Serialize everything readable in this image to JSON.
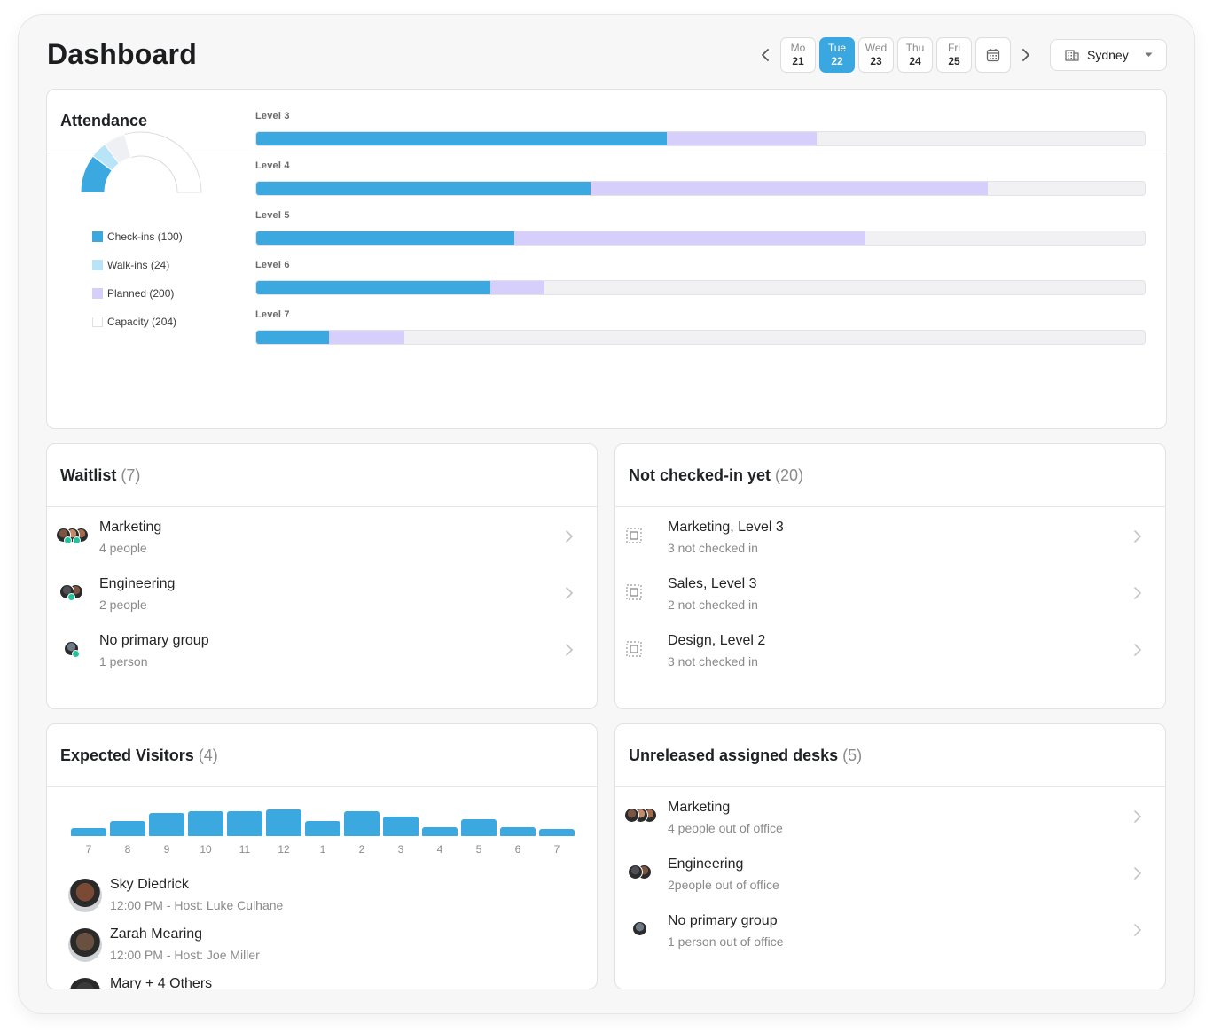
{
  "header": {
    "title": "Dashboard",
    "days": [
      {
        "name": "Mo",
        "date": "21",
        "active": false
      },
      {
        "name": "Tue",
        "date": "22",
        "active": true
      },
      {
        "name": "Wed",
        "date": "23",
        "active": false
      },
      {
        "name": "Thu",
        "date": "24",
        "active": false
      },
      {
        "name": "Fri",
        "date": "25",
        "active": false
      }
    ],
    "location": "Sydney"
  },
  "colors": {
    "checkins": "#3ba9e0",
    "walkins": "#b9e4f8",
    "planned": "#d7cffb",
    "capacity": "#ffffff",
    "accent": "#3aa7e0"
  },
  "attendance": {
    "title": "Attendance",
    "gauge": {
      "checkins": 100,
      "walkins": 24,
      "planned": 200,
      "capacity": 204
    },
    "legend": [
      {
        "label": "Check-ins (100)",
        "color": "#3ba9e0"
      },
      {
        "label": "Walk-ins (24)",
        "color": "#b9e4f8"
      },
      {
        "label": "Planned (200)",
        "color": "#d7cffb"
      },
      {
        "label": "Capacity (204)",
        "color": "#ffffff"
      }
    ],
    "levels": [
      {
        "label": "Level 3",
        "checkin_pct": 46.2,
        "planned_pct": 63.1
      },
      {
        "label": "Level 4",
        "checkin_pct": 37.6,
        "planned_pct": 82.3
      },
      {
        "label": "Level 5",
        "checkin_pct": 29.0,
        "planned_pct": 68.6
      },
      {
        "label": "Level 6",
        "checkin_pct": 26.3,
        "planned_pct": 32.4
      },
      {
        "label": "Level 7",
        "checkin_pct": 8.2,
        "planned_pct": 16.7
      }
    ]
  },
  "waitlist": {
    "title": "Waitlist",
    "count": "(7)",
    "items": [
      {
        "title": "Marketing",
        "sub": "4 people"
      },
      {
        "title": "Engineering",
        "sub": "2 people"
      },
      {
        "title": "No primary group",
        "sub": "1 person"
      }
    ]
  },
  "not_checked_in": {
    "title": "Not checked-in yet",
    "count": "(20)",
    "items": [
      {
        "title": "Marketing, Level 3",
        "sub": "3 not checked in"
      },
      {
        "title": "Sales, Level 3",
        "sub": "2 not checked in"
      },
      {
        "title": "Design, Level 2",
        "sub": "3 not checked in"
      }
    ]
  },
  "visitors": {
    "title": "Expected Visitors",
    "count": "(4)",
    "chart": {
      "type": "bar",
      "categories": [
        "7",
        "8",
        "9",
        "10",
        "11",
        "12",
        "1",
        "2",
        "3",
        "4",
        "5",
        "6",
        "7"
      ],
      "values": [
        1,
        1.8,
        2.8,
        3,
        3,
        3.2,
        1.8,
        3,
        2.4,
        1.1,
        2,
        1.1,
        0.9
      ],
      "ylim": [
        0,
        3.2
      ]
    },
    "items": [
      {
        "name": "Sky Diedrick",
        "detail": "12:00 PM - Host: Luke Culhane"
      },
      {
        "name": "Zarah Mearing",
        "detail": "12:00 PM - Host: Joe Miller"
      },
      {
        "name": "Mary + 4 Others",
        "detail": ""
      }
    ]
  },
  "unreleased": {
    "title": "Unreleased assigned desks",
    "count": "(5)",
    "items": [
      {
        "title": "Marketing",
        "sub": "4 people out of office"
      },
      {
        "title": "Engineering",
        "sub": "2people out of office"
      },
      {
        "title": "No primary group",
        "sub": "1 person out of office"
      }
    ]
  }
}
